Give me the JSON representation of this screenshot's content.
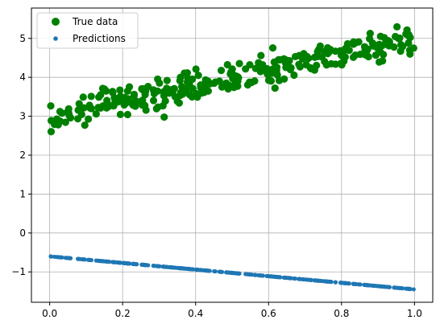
{
  "chart_data": {
    "type": "scatter",
    "title": "",
    "xlabel": "",
    "ylabel": "",
    "xlim": [
      -0.05,
      1.05
    ],
    "ylim": [
      -1.78,
      5.78
    ],
    "xticks": [
      0.0,
      0.2,
      0.4,
      0.6,
      0.8,
      1.0
    ],
    "xtick_labels": [
      "0.0",
      "0.2",
      "0.4",
      "0.6",
      "0.8",
      "1.0"
    ],
    "yticks": [
      -1,
      0,
      1,
      2,
      3,
      4,
      5
    ],
    "ytick_labels": [
      "−1",
      "0",
      "1",
      "2",
      "3",
      "4",
      "5"
    ],
    "grid": true,
    "legend_position": "top-left",
    "series": [
      {
        "name": "True data",
        "color": "#008000",
        "marker": "large-circle",
        "trend": {
          "intercept": 3.0,
          "slope": 2.0,
          "noise": 0.2
        },
        "points_count": 300
      },
      {
        "name": "Predictions",
        "color": "#1f77b4",
        "marker": "small-circle",
        "trend": {
          "intercept": -0.6,
          "slope": -0.85
        },
        "points_count": 300
      }
    ]
  }
}
